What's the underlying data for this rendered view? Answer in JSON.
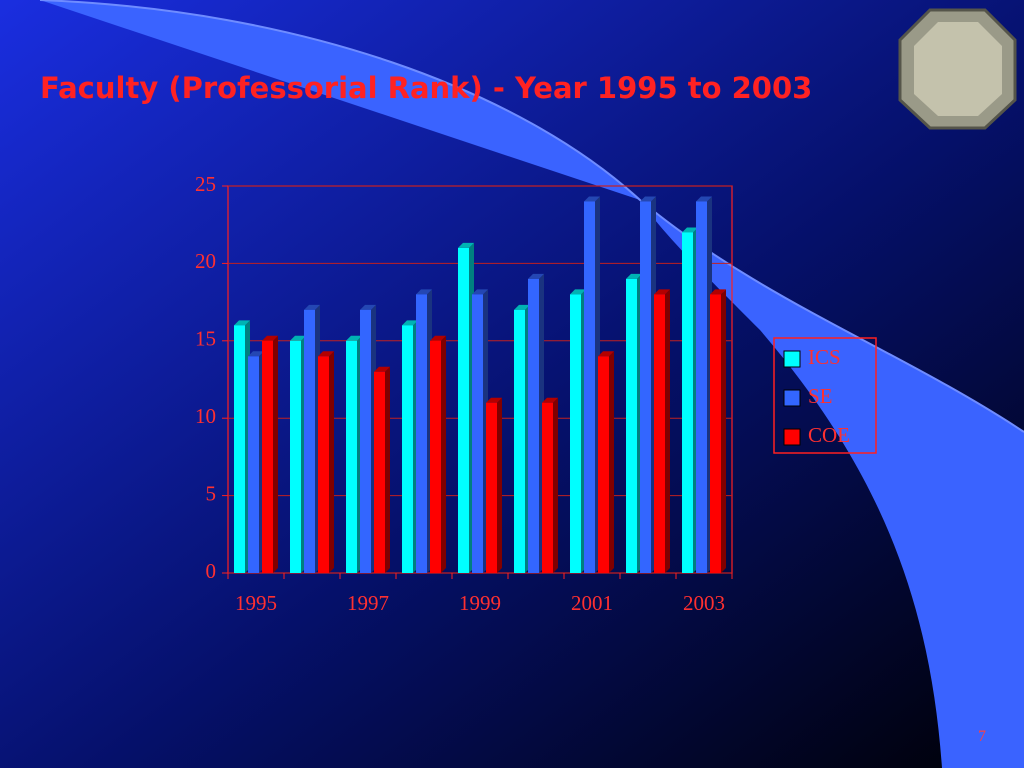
{
  "chart_data": {
    "type": "bar3d",
    "title": "Faculty (Professorial  Rank)  - Year  1995 to 2003",
    "categories": [
      "1995",
      null,
      "1997",
      null,
      "1999",
      null,
      "2001",
      null,
      "2003"
    ],
    "series": [
      {
        "name": "ICS",
        "color": "#00ffff",
        "values": [
          16,
          15,
          15,
          16,
          21,
          17,
          18,
          19,
          22
        ]
      },
      {
        "name": "SE",
        "color": "#3366ff",
        "values": [
          14,
          17,
          17,
          18,
          18,
          19,
          24,
          24,
          24
        ]
      },
      {
        "name": "COE",
        "color": "#ff0000",
        "values": [
          15,
          14,
          13,
          15,
          11,
          11,
          14,
          18,
          18
        ]
      }
    ],
    "ylim": [
      0,
      25
    ],
    "yticks": [
      0,
      5,
      10,
      15,
      20,
      25
    ],
    "grid": true,
    "legend": "right"
  },
  "slide": {
    "page_number": "7"
  }
}
